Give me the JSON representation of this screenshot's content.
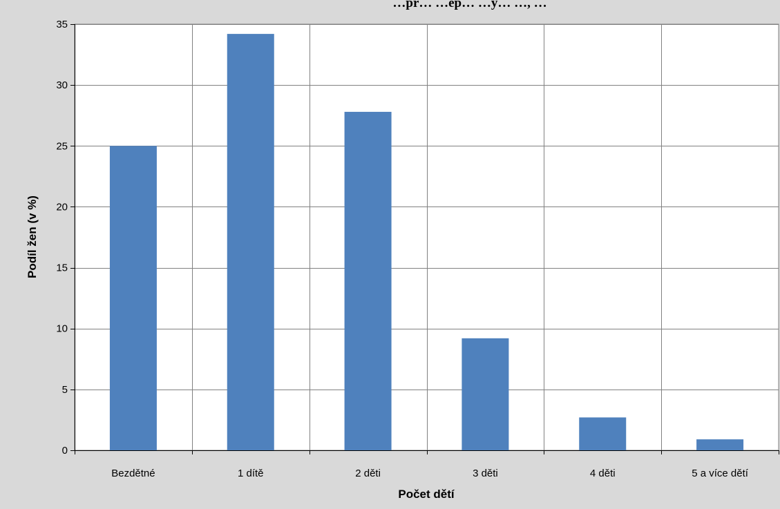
{
  "chart_data": {
    "type": "bar",
    "title": "…pr… …ep… …y… …, …",
    "xlabel": "Počet dětí",
    "ylabel": "Podíl žen (v %)",
    "categories": [
      "Bezdětné",
      "1 dítě",
      "2 děti",
      "3 děti",
      "4 děti",
      "5 a více dětí"
    ],
    "values": [
      25.0,
      34.2,
      27.8,
      9.2,
      2.7,
      0.9
    ],
    "ylim": [
      0,
      35
    ],
    "yticks": [
      0,
      5,
      10,
      15,
      20,
      25,
      30,
      35
    ],
    "grid": true,
    "legend": "none",
    "bar_color": "#4f81bd",
    "plot_background": "#ffffff",
    "chart_background": "#d9d9d9"
  }
}
